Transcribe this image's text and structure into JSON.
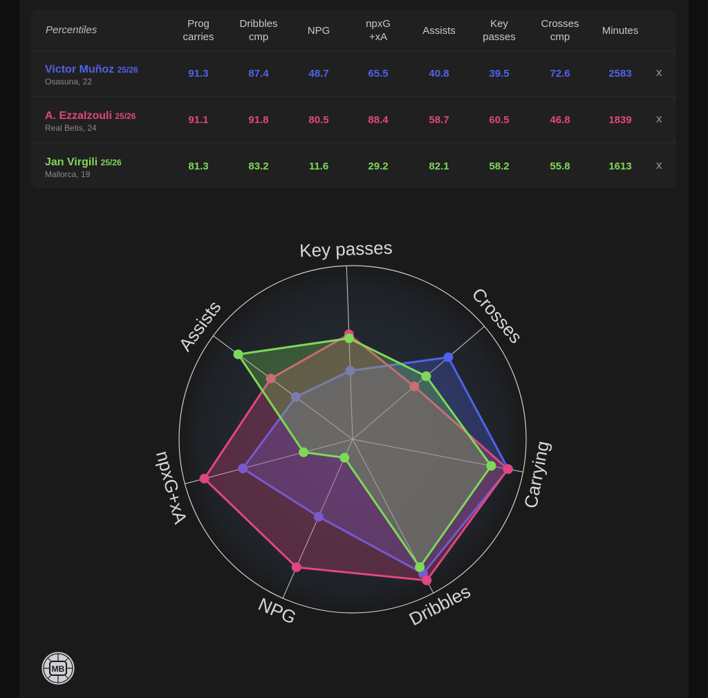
{
  "table": {
    "title": "Percentiles",
    "columns": [
      {
        "line1": "Prog",
        "line2": "carries"
      },
      {
        "line1": "Dribbles",
        "line2": "cmp"
      },
      {
        "line1": "NPG",
        "line2": ""
      },
      {
        "line1": "npxG",
        "line2": "+xA"
      },
      {
        "line1": "Assists",
        "line2": ""
      },
      {
        "line1": "Key",
        "line2": "passes"
      },
      {
        "line1": "Crosses",
        "line2": "cmp"
      },
      {
        "line1": "Minutes",
        "line2": ""
      }
    ],
    "remove_label": "x",
    "players": [
      {
        "name": "Victor Muñoz",
        "season": "25/26",
        "club": "Osasuna, 22",
        "color": "#4f63ea",
        "values": [
          "91.3",
          "87.4",
          "48.7",
          "65.5",
          "40.8",
          "39.5",
          "72.6",
          "2583"
        ]
      },
      {
        "name": "A. Ezzalzouli",
        "season": "25/26",
        "club": "Real Betis, 24",
        "color": "#e2467f",
        "values": [
          "91.1",
          "91.8",
          "80.5",
          "88.4",
          "58.7",
          "60.5",
          "46.8",
          "1839"
        ]
      },
      {
        "name": "Jan Virgili",
        "season": "25/26",
        "club": "Mallorca, 19",
        "color": "#7ed957",
        "values": [
          "81.3",
          "83.2",
          "11.6",
          "29.2",
          "82.1",
          "58.2",
          "55.8",
          "1613"
        ]
      }
    ]
  },
  "chart_data": {
    "type": "radar",
    "axes": [
      "Key passes",
      "Crosses",
      "Carrying",
      "Dribbles",
      "NPG",
      "npxG+xA",
      "Assists"
    ],
    "range": [
      0,
      100
    ],
    "series": [
      {
        "name": "Victor Muñoz",
        "color": "#4f63ea",
        "values": [
          39.5,
          72.6,
          91.3,
          87.4,
          48.7,
          65.5,
          40.8
        ]
      },
      {
        "name": "A. Ezzalzouli",
        "color": "#e2467f",
        "values": [
          60.5,
          46.8,
          91.1,
          91.8,
          80.5,
          88.4,
          58.7
        ]
      },
      {
        "name": "Jan Virgili",
        "color": "#7ed957",
        "values": [
          58.2,
          55.8,
          81.3,
          83.2,
          11.6,
          29.2,
          82.1
        ]
      }
    ]
  },
  "logo": {
    "text": "MB"
  }
}
